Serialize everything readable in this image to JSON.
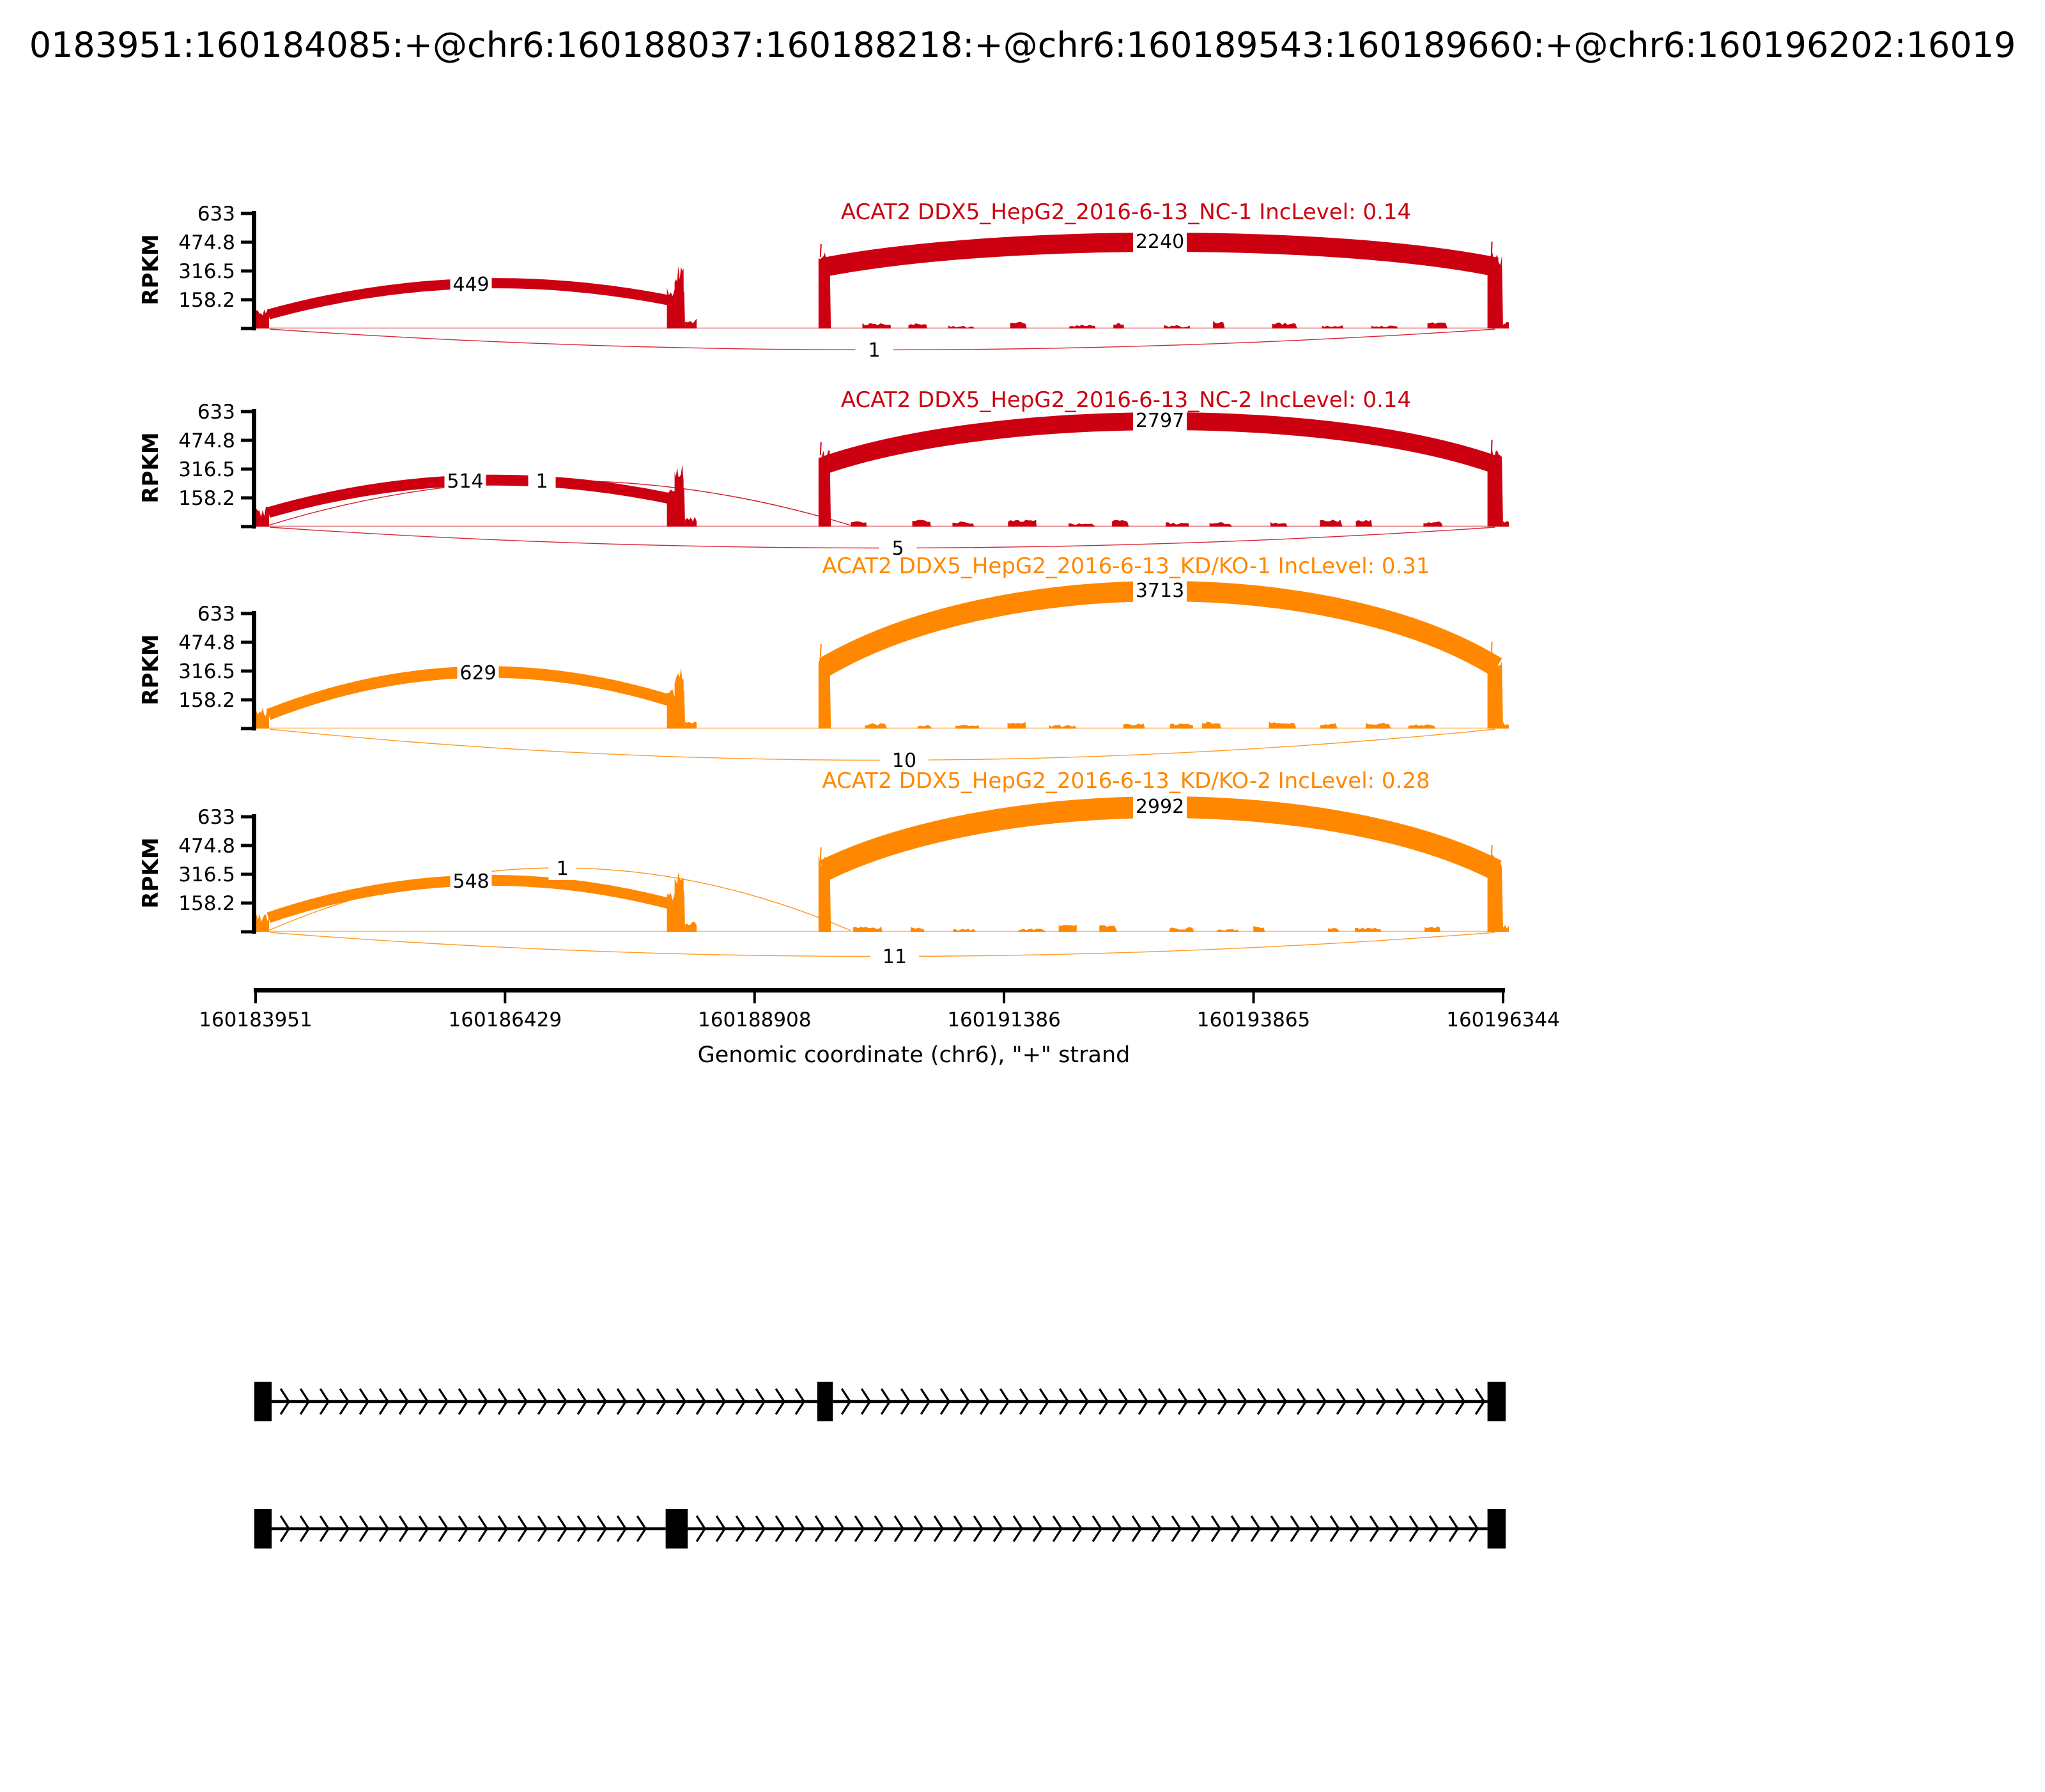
{
  "page_title": "0183951:160184085:+@chr6:160188037:160188218:+@chr6:160189543:160189660:+@chr6:160196202:16019",
  "colors": {
    "nc_red": "#CC0011",
    "kd_orange": "#FF8800",
    "ink": "#000000"
  },
  "chart_data": {
    "type": "sashimi",
    "gene": "ACAT2",
    "region": {
      "chrom": "chr6",
      "strand": "+",
      "start": 160183951,
      "end": 160196344
    },
    "title": "0183951:160184085:+@chr6:160188037:160188218:+@chr6:160189543:160189660:+@chr6:160196202:16019",
    "ylabel": "RPKM",
    "xlabel": "Genomic coordinate (chr6), \"+\" strand",
    "y_ticks": [
      633,
      474.8,
      316.5,
      158.2
    ],
    "y_max": 633,
    "x_ticks": [
      "160183951",
      "160186429",
      "160188908",
      "160191386",
      "160193865",
      "160196344"
    ],
    "inc_prefix": "IncLevel:",
    "exons": [
      [
        160183951,
        160184085
      ],
      [
        160188037,
        160188218
      ],
      [
        160189543,
        160189660
      ],
      [
        160196202,
        160196344
      ]
    ],
    "tracks": [
      {
        "label": "ACAT2 DDX5_HepG2_2016-6-13_NC-1",
        "inc_level": "0.14",
        "color": "#CC0011",
        "junctions": [
          {
            "from": 1,
            "to": 2,
            "reads": 449,
            "side": "top"
          },
          {
            "from": 3,
            "to": 4,
            "reads": 2240,
            "side": "top"
          },
          {
            "from": 1,
            "to": 4,
            "reads": 1,
            "side": "bottom"
          }
        ]
      },
      {
        "label": "ACAT2 DDX5_HepG2_2016-6-13_NC-2",
        "inc_level": "0.14",
        "color": "#CC0011",
        "junctions": [
          {
            "from": 1,
            "to": 2,
            "reads": 514,
            "side": "top"
          },
          {
            "from": 1,
            "to": 3,
            "reads": 1,
            "side": "top-thin"
          },
          {
            "from": 3,
            "to": 4,
            "reads": 2797,
            "side": "top"
          },
          {
            "from": 1,
            "to": 4,
            "reads": 5,
            "side": "bottom"
          }
        ]
      },
      {
        "label": "ACAT2 DDX5_HepG2_2016-6-13_KD/KO-1",
        "inc_level": "0.31",
        "color": "#FF8800",
        "junctions": [
          {
            "from": 1,
            "to": 2,
            "reads": 629,
            "side": "top"
          },
          {
            "from": 3,
            "to": 4,
            "reads": 3713,
            "side": "top"
          },
          {
            "from": 1,
            "to": 4,
            "reads": 10,
            "side": "bottom"
          }
        ]
      },
      {
        "label": "ACAT2 DDX5_HepG2_2016-6-13_KD/KO-2",
        "inc_level": "0.28",
        "color": "#FF8800",
        "junctions": [
          {
            "from": 1,
            "to": 2,
            "reads": 548,
            "side": "top"
          },
          {
            "from": 1,
            "to": 3,
            "reads": 1,
            "side": "top-thin"
          },
          {
            "from": 3,
            "to": 4,
            "reads": 2992,
            "side": "top"
          },
          {
            "from": 1,
            "to": 4,
            "reads": 11,
            "side": "bottom"
          }
        ]
      }
    ],
    "isoforms": [
      {
        "exons": [
          1,
          3,
          4
        ]
      },
      {
        "exons": [
          1,
          2,
          4
        ]
      }
    ]
  }
}
